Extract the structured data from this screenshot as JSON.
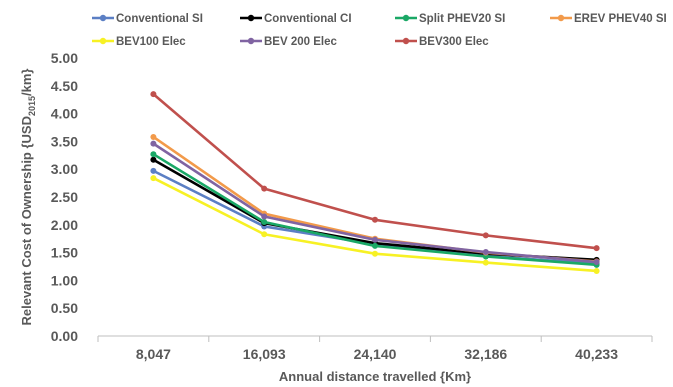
{
  "chart_data": {
    "type": "line",
    "title": "",
    "xlabel": "Annual distance travelled {Km}",
    "ylabel_prefix": "Relevant Cost of Ownership {USD",
    "ylabel_sub": "2015",
    "ylabel_suffix": "/km}",
    "categories": [
      "8,047",
      "16,093",
      "24,140",
      "32,186",
      "40,233"
    ],
    "ylim": [
      0,
      5
    ],
    "yticks": [
      "0.00",
      "0.50",
      "1.00",
      "1.50",
      "2.00",
      "2.50",
      "3.00",
      "3.50",
      "4.00",
      "4.50",
      "5.00"
    ],
    "grid": false,
    "legend_position": "top",
    "series": [
      {
        "name": "Conventional SI",
        "color": "#5b7fc4",
        "values": [
          2.97,
          1.97,
          1.65,
          1.44,
          1.3
        ]
      },
      {
        "name": "Conventional CI",
        "color": "#000000",
        "values": [
          3.17,
          2.03,
          1.67,
          1.48,
          1.37
        ]
      },
      {
        "name": "Split PHEV20 SI",
        "color": "#1aa866",
        "values": [
          3.27,
          2.05,
          1.62,
          1.43,
          1.28
        ]
      },
      {
        "name": "EREV PHEV40 SI",
        "color": "#f29a4a",
        "values": [
          3.58,
          2.2,
          1.75,
          1.5,
          1.34
        ]
      },
      {
        "name": "BEV100 Elec",
        "color": "#f7f124",
        "values": [
          2.84,
          1.83,
          1.48,
          1.32,
          1.17
        ]
      },
      {
        "name": "BEV 200 Elec",
        "color": "#8064a2",
        "values": [
          3.46,
          2.15,
          1.73,
          1.51,
          1.33
        ]
      },
      {
        "name": "BEV300 Elec",
        "color": "#c0504d",
        "values": [
          4.35,
          2.65,
          2.09,
          1.81,
          1.58
        ]
      }
    ]
  }
}
